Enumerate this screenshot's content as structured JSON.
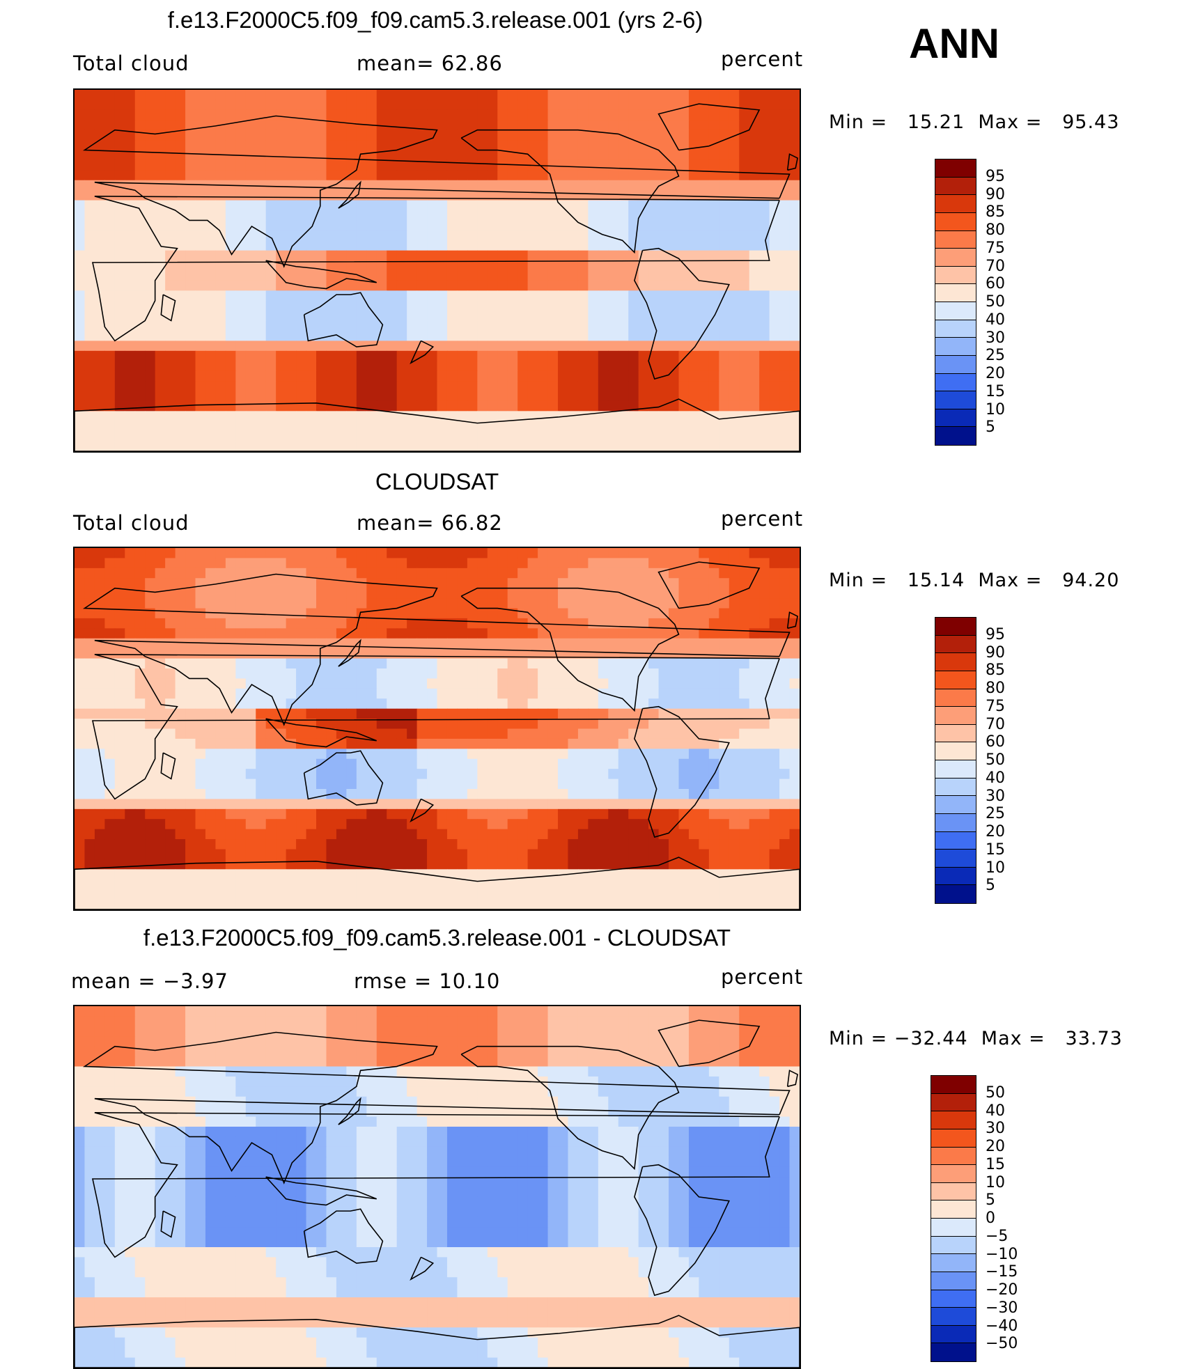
{
  "season": "ANN",
  "panels": [
    {
      "id": "model",
      "title": "f.e13.F2000C5.f09_f09.cam5.3.release.001 (yrs 2-6)",
      "left_label": "Total cloud",
      "center_label": "mean=   62.86",
      "right_label": "percent",
      "minmax": "Min =   15.21  Max =   95.43",
      "levels": [
        "95",
        "90",
        "85",
        "80",
        "75",
        "70",
        "60",
        "50",
        "40",
        "30",
        "25",
        "20",
        "15",
        "10",
        "5"
      ],
      "colors": [
        "#7f0000",
        "#b3200a",
        "#d9380c",
        "#f3561d",
        "#fb7a49",
        "#fd9e78",
        "#fec3a7",
        "#fde6d4",
        "#dbe9fb",
        "#b8d3fb",
        "#92b5f9",
        "#6a93f5",
        "#3f6ef3",
        "#1e4bd9",
        "#0a2ab7",
        "#00118c"
      ]
    },
    {
      "id": "obs",
      "title": "CLOUDSAT",
      "left_label": "Total cloud",
      "center_label": "mean=   66.82",
      "right_label": "percent",
      "minmax": "Min =   15.14  Max =   94.20",
      "levels": [
        "95",
        "90",
        "85",
        "80",
        "75",
        "70",
        "60",
        "50",
        "40",
        "30",
        "25",
        "20",
        "15",
        "10",
        "5"
      ],
      "colors": [
        "#7f0000",
        "#b3200a",
        "#d9380c",
        "#f3561d",
        "#fb7a49",
        "#fd9e78",
        "#fec3a7",
        "#fde6d4",
        "#dbe9fb",
        "#b8d3fb",
        "#92b5f9",
        "#6a93f5",
        "#3f6ef3",
        "#1e4bd9",
        "#0a2ab7",
        "#00118c"
      ]
    },
    {
      "id": "diff",
      "title": "f.e13.F2000C5.f09_f09.cam5.3.release.001 - CLOUDSAT",
      "left_label": "mean =    −3.97",
      "center_label": "rmse =    10.10",
      "right_label": "percent",
      "minmax": "Min = −32.44  Max =   33.73",
      "levels": [
        "50",
        "40",
        "30",
        "20",
        "15",
        "10",
        "5",
        "0",
        "−5",
        "−10",
        "−15",
        "−20",
        "−30",
        "−40",
        "−50"
      ],
      "colors": [
        "#7f0000",
        "#b3200a",
        "#d9380c",
        "#f3561d",
        "#fb7a49",
        "#fd9e78",
        "#fec3a7",
        "#fde6d4",
        "#dbe9fb",
        "#b8d3fb",
        "#92b5f9",
        "#6a93f5",
        "#3f6ef3",
        "#1e4bd9",
        "#0a2ab7",
        "#00118c"
      ]
    }
  ]
}
